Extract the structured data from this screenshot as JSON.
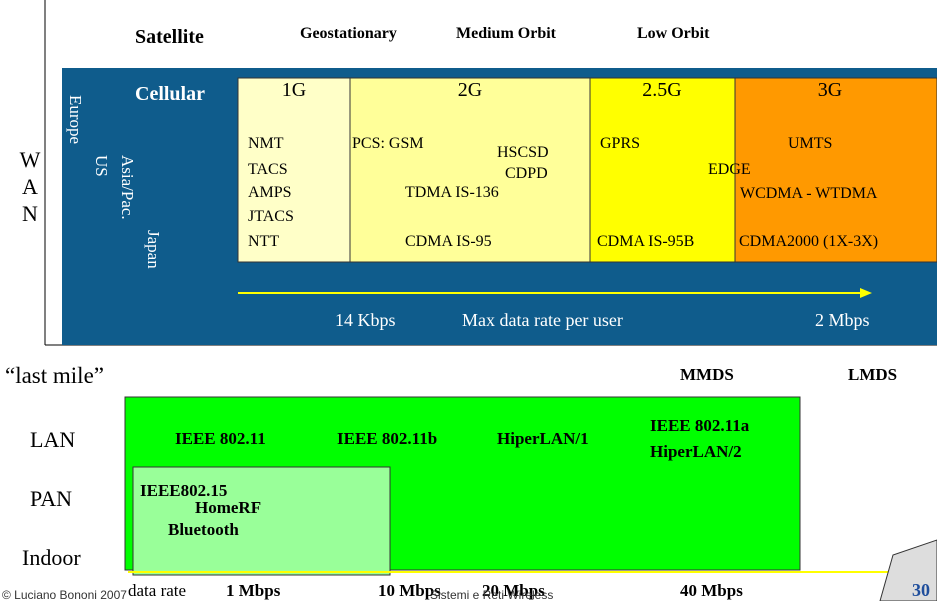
{
  "satellite": {
    "label": "Satellite",
    "orbits": [
      "Geostationary",
      "Medium Orbit",
      "Low Orbit"
    ]
  },
  "wan": {
    "side_label": [
      "W",
      "A",
      "N"
    ],
    "cellular": "Cellular",
    "regions": [
      "Europe",
      "US",
      "Asia/Pac.",
      "Japan"
    ],
    "generations": [
      {
        "name": "1G",
        "systems": [
          "NMT",
          "TACS",
          "AMPS",
          "JTACS",
          "NTT"
        ]
      },
      {
        "name": "2G",
        "systems": [
          "PCS:  GSM",
          "HSCSD",
          "CDPD",
          "TDMA IS-136",
          "CDMA IS-95"
        ]
      },
      {
        "name": "2.5G",
        "systems": [
          "GPRS",
          "EDGE",
          "CDMA IS-95B"
        ]
      },
      {
        "name": "3G",
        "systems": [
          "UMTS",
          "WCDMA - WTDMA",
          "CDMA2000 (1X-3X)"
        ]
      }
    ],
    "rate_min": "14 Kbps",
    "rate_caption": "Max data rate per user",
    "rate_max": "2 Mbps"
  },
  "last_mile": {
    "label": "“last mile”",
    "items": [
      "MMDS",
      "LMDS"
    ]
  },
  "local": {
    "levels": [
      "LAN",
      "PAN",
      "Indoor"
    ],
    "lan_standards": [
      "IEEE 802.11",
      "IEEE 802.11b",
      "HiperLAN/1",
      "IEEE 802.11a",
      "HiperLAN/2"
    ],
    "pan_standards": [
      "IEEE802.15",
      "HomeRF",
      "Bluetooth"
    ],
    "data_rate": "data rate",
    "rates": [
      "1 Mbps",
      "10 Mbps",
      "20 Mbps",
      "40 Mbps"
    ]
  },
  "footer": {
    "copyright": "© Luciano Bononi 2007",
    "course": "Sistemi e Reti Wireless",
    "page": "30"
  }
}
